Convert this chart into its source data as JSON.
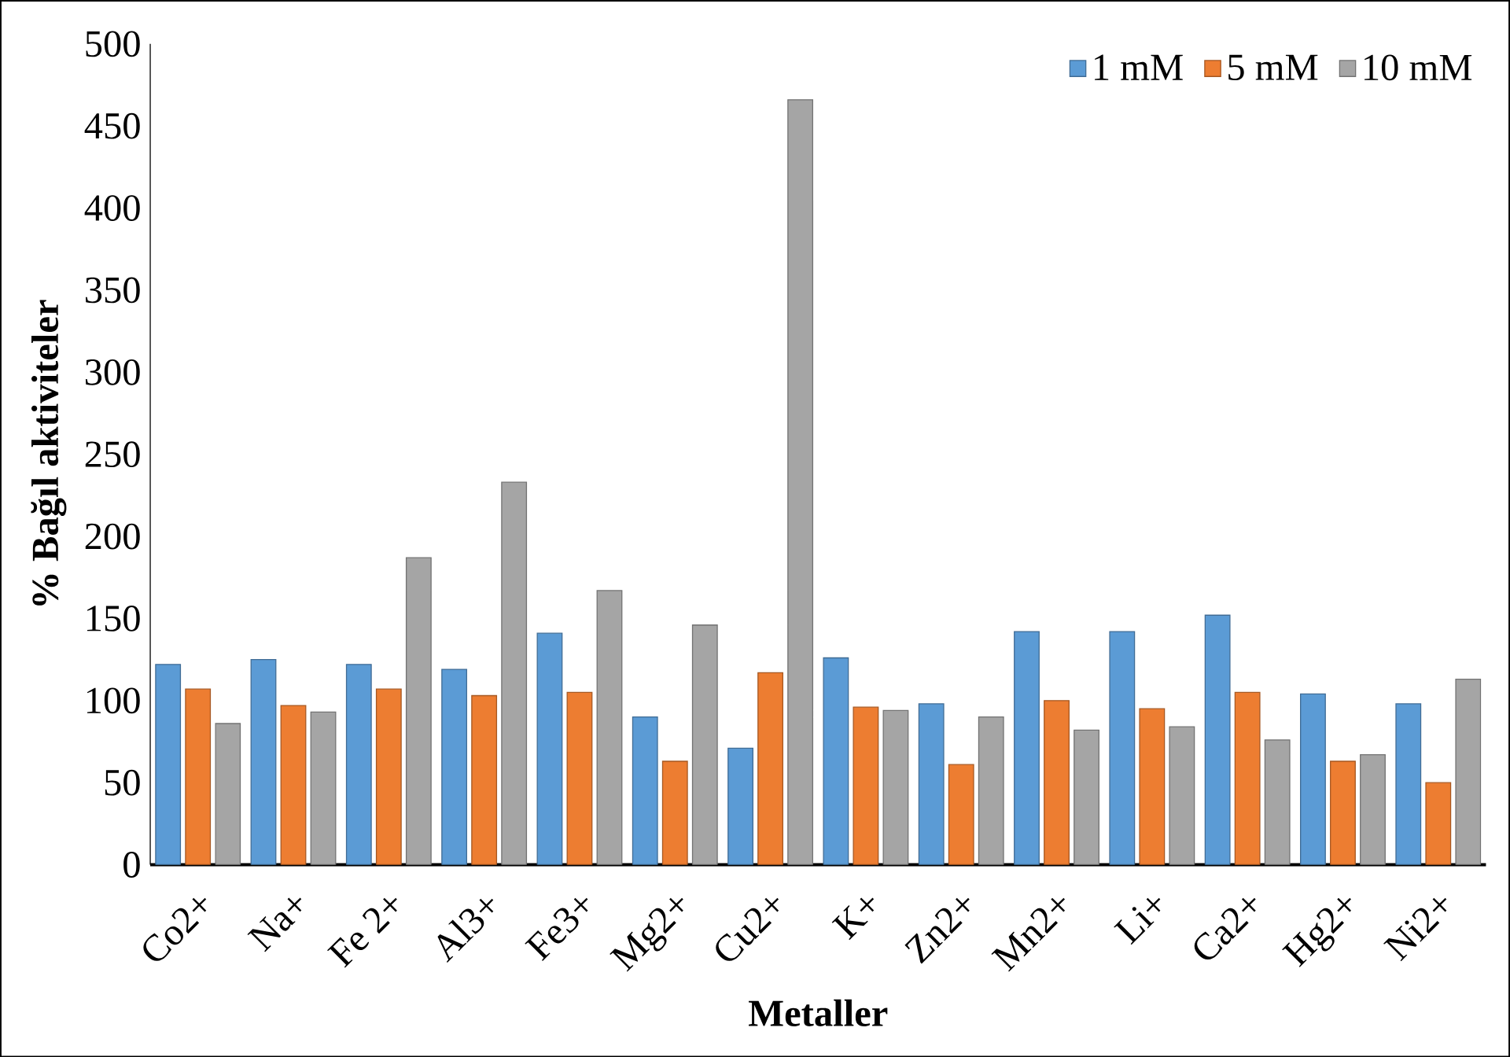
{
  "chart_data": {
    "type": "bar",
    "xlabel": "Metaller",
    "ylabel": "% Bağıl aktiviteler",
    "categories": [
      "Co2+",
      "Na+",
      "Fe 2+",
      "Al3+",
      "Fe3+",
      "Mg2+",
      "Cu2+",
      "K+",
      "Zn2+",
      "Mn2+",
      "Li+",
      "Ca2+",
      "Hg2+",
      "Ni2+"
    ],
    "series": [
      {
        "name": "1 mM",
        "color": "#5b9bd5",
        "values": [
          122,
          125,
          122,
          119,
          141,
          90,
          71,
          126,
          98,
          142,
          142,
          152,
          104,
          98
        ]
      },
      {
        "name": "5 mM",
        "color": "#ed7d31",
        "values": [
          107,
          97,
          107,
          103,
          105,
          63,
          117,
          96,
          61,
          100,
          95,
          105,
          63,
          50
        ]
      },
      {
        "name": "10 mM",
        "color": "#a5a5a5",
        "values": [
          86,
          93,
          187,
          233,
          167,
          146,
          466,
          94,
          90,
          82,
          84,
          76,
          67,
          113
        ]
      }
    ],
    "ylim": [
      0,
      500
    ],
    "yticks": [
      0,
      50,
      100,
      150,
      200,
      250,
      300,
      350,
      400,
      450,
      500
    ],
    "grid": false,
    "legend": "top right"
  }
}
